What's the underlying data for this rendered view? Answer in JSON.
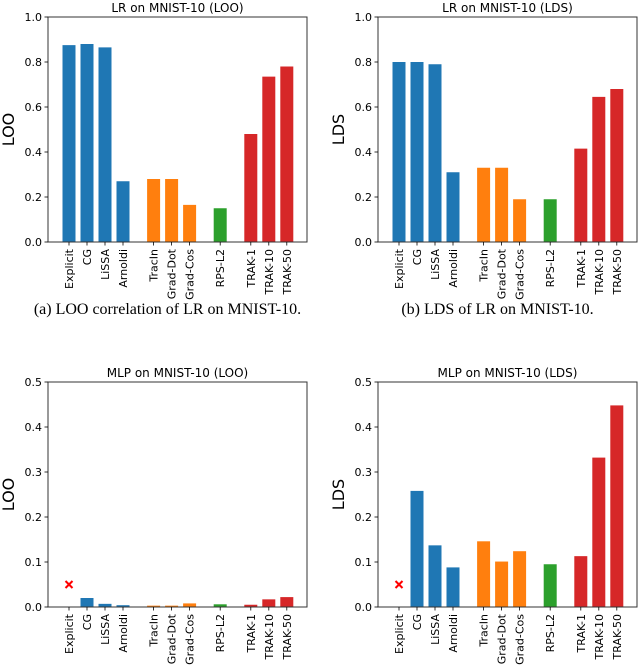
{
  "chart_data": [
    {
      "type": "bar",
      "title": "LR on MNIST-10 (LOO)",
      "xlabel": "",
      "ylabel": "LOO",
      "ylim": [
        0,
        1.0
      ],
      "yticks": [
        "0.0",
        "0.2",
        "0.4",
        "0.6",
        "0.8",
        "1.0"
      ],
      "yticks_values": [
        0,
        0.2,
        0.4,
        0.6,
        0.8,
        1.0
      ],
      "categories": [
        "Explicit",
        "CG",
        "LiSSA",
        "Arnoldi",
        "TracIn",
        "Grad-Dot",
        "Grad-Cos",
        "RPS-L2",
        "TRAK-1",
        "TRAK-10",
        "TRAK-50"
      ],
      "values": [
        0.875,
        0.88,
        0.865,
        0.27,
        0.28,
        0.28,
        0.165,
        0.15,
        0.48,
        0.735,
        0.78
      ],
      "groups": [
        0,
        0,
        0,
        0,
        1,
        1,
        1,
        2,
        3,
        3,
        3
      ],
      "markers": [],
      "caption": "(a) LOO correlation of LR on MNIST-10."
    },
    {
      "type": "bar",
      "title": "LR on MNIST-10 (LDS)",
      "xlabel": "",
      "ylabel": "LDS",
      "ylim": [
        0,
        1.0
      ],
      "yticks": [
        "0.0",
        "0.2",
        "0.4",
        "0.6",
        "0.8",
        "1.0"
      ],
      "yticks_values": [
        0,
        0.2,
        0.4,
        0.6,
        0.8,
        1.0
      ],
      "categories": [
        "Explicit",
        "CG",
        "LiSSA",
        "Arnoldi",
        "TracIn",
        "Grad-Dot",
        "Grad-Cos",
        "RPS-L2",
        "TRAK-1",
        "TRAK-10",
        "TRAK-50"
      ],
      "values": [
        0.8,
        0.8,
        0.79,
        0.31,
        0.33,
        0.33,
        0.19,
        0.19,
        0.415,
        0.645,
        0.68
      ],
      "groups": [
        0,
        0,
        0,
        0,
        1,
        1,
        1,
        2,
        3,
        3,
        3
      ],
      "markers": [],
      "caption": "(b) LDS of LR on MNIST-10."
    },
    {
      "type": "bar",
      "title": "MLP on MNIST-10 (LOO)",
      "xlabel": "",
      "ylabel": "LOO",
      "ylim": [
        0,
        0.5
      ],
      "yticks": [
        "0.0",
        "0.1",
        "0.2",
        "0.3",
        "0.4",
        "0.5"
      ],
      "yticks_values": [
        0,
        0.1,
        0.2,
        0.3,
        0.4,
        0.5
      ],
      "categories": [
        "Explicit",
        "CG",
        "LiSSA",
        "Arnoldi",
        "TracIn",
        "Grad-Dot",
        "Grad-Cos",
        "RPS-L2",
        "TRAK-1",
        "TRAK-10",
        "TRAK-50"
      ],
      "values": [
        null,
        0.02,
        0.007,
        0.004,
        0.003,
        0.003,
        0.008,
        0.006,
        0.005,
        0.017,
        0.022
      ],
      "groups": [
        0,
        0,
        0,
        0,
        1,
        1,
        1,
        2,
        3,
        3,
        3
      ],
      "markers": [
        {
          "category": "Explicit",
          "symbol": "x",
          "value": 0.05,
          "meaning": "not available"
        }
      ],
      "caption": ""
    },
    {
      "type": "bar",
      "title": "MLP on MNIST-10 (LDS)",
      "xlabel": "",
      "ylabel": "LDS",
      "ylim": [
        0,
        0.5
      ],
      "yticks": [
        "0.0",
        "0.1",
        "0.2",
        "0.3",
        "0.4",
        "0.5"
      ],
      "yticks_values": [
        0,
        0.1,
        0.2,
        0.3,
        0.4,
        0.5
      ],
      "categories": [
        "Explicit",
        "CG",
        "LiSSA",
        "Arnoldi",
        "TracIn",
        "Grad-Dot",
        "Grad-Cos",
        "RPS-L2",
        "TRAK-1",
        "TRAK-10",
        "TRAK-50"
      ],
      "values": [
        null,
        0.258,
        0.137,
        0.088,
        0.146,
        0.101,
        0.124,
        0.095,
        0.113,
        0.332,
        0.448
      ],
      "groups": [
        0,
        0,
        0,
        0,
        1,
        1,
        1,
        2,
        3,
        3,
        3
      ],
      "markers": [
        {
          "category": "Explicit",
          "symbol": "x",
          "value": 0.05,
          "meaning": "not available"
        }
      ],
      "caption": ""
    }
  ],
  "colors": {
    "group_colors": [
      "#1f77b4",
      "#ff7f0e",
      "#2ca02c",
      "#d62728"
    ],
    "marker_color": "#ff0000",
    "axis_color": "#333333"
  }
}
